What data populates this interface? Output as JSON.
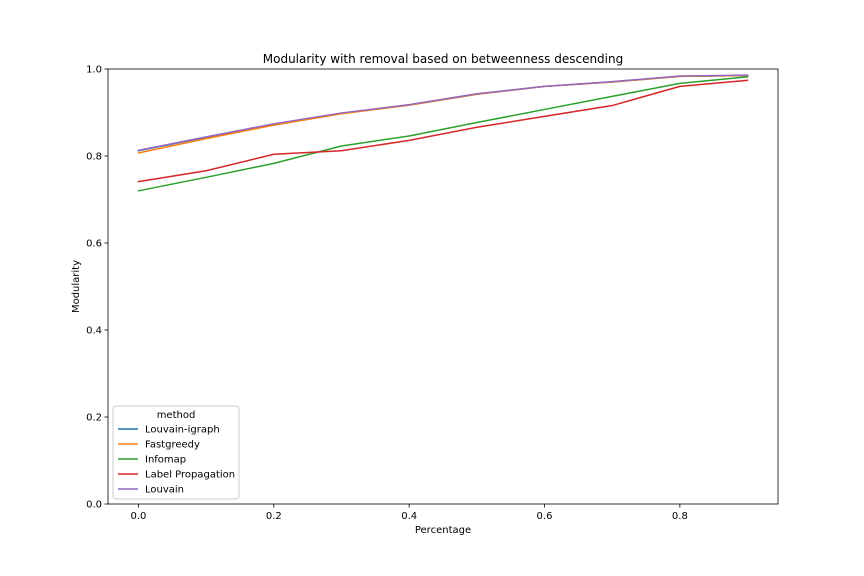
{
  "chart_data": {
    "type": "line",
    "title": "Modularity with removal based on betweenness descending",
    "xlabel": "Percentage",
    "ylabel": "Modularity",
    "xlim": [
      -0.045,
      0.945
    ],
    "ylim": [
      0.0,
      1.0
    ],
    "xticks": [
      0.0,
      0.2,
      0.4,
      0.6,
      0.8
    ],
    "xtick_labels": [
      "0.0",
      "0.2",
      "0.4",
      "0.6",
      "0.8"
    ],
    "yticks": [
      0.0,
      0.2,
      0.4,
      0.6,
      0.8,
      1.0
    ],
    "ytick_labels": [
      "0.0",
      "0.2",
      "0.4",
      "0.6",
      "0.8",
      "1.0"
    ],
    "legend": {
      "title": "method",
      "location": "lower-left"
    },
    "x": [
      0.0,
      0.1,
      0.2,
      0.3,
      0.4,
      0.5,
      0.6,
      0.7,
      0.8,
      0.9
    ],
    "series": [
      {
        "name": "Louvain-igraph",
        "color": "#1f77b4",
        "values": [
          0.812,
          0.843,
          0.873,
          0.898,
          0.917,
          0.942,
          0.96,
          0.97,
          0.983,
          0.985
        ]
      },
      {
        "name": "Fastgreedy",
        "color": "#ff7f0e",
        "values": [
          0.807,
          0.84,
          0.871,
          0.897,
          0.917,
          0.942,
          0.96,
          0.97,
          0.983,
          0.985
        ]
      },
      {
        "name": "Infomap",
        "color": "#2ca02c",
        "values": [
          0.72,
          0.751,
          0.783,
          0.823,
          0.846,
          0.877,
          0.907,
          0.937,
          0.967,
          0.982
        ]
      },
      {
        "name": "Label Propagation",
        "color": "#d62728",
        "values": [
          0.741,
          0.766,
          0.804,
          0.812,
          0.836,
          0.866,
          0.891,
          0.916,
          0.96,
          0.974
        ]
      },
      {
        "name": "Louvain",
        "color": "#9467bd",
        "values": [
          0.813,
          0.844,
          0.874,
          0.899,
          0.918,
          0.943,
          0.96,
          0.971,
          0.984,
          0.986
        ]
      }
    ]
  }
}
